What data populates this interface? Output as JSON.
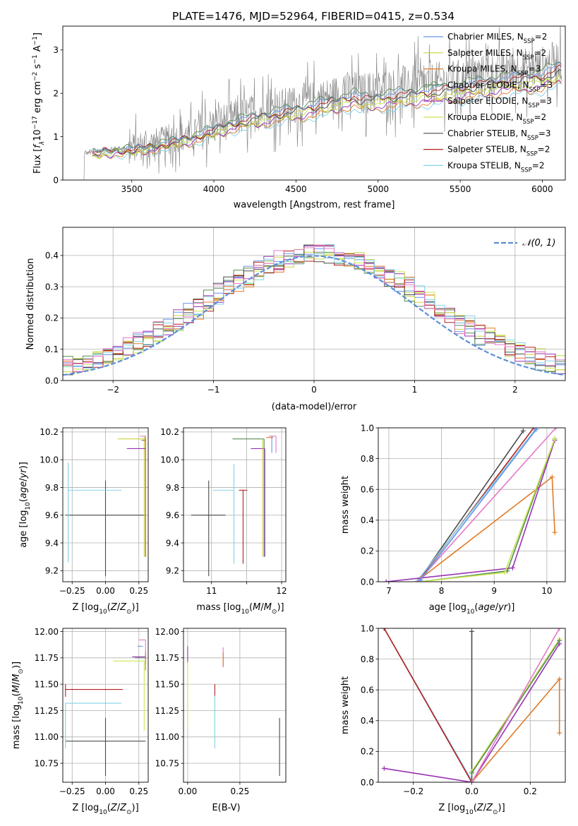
{
  "figure_title": "PLATE=1476, MJD=52964, FIBERID=0415, z=0.534",
  "colors": {
    "Chabrier MILES": "#6495ed",
    "Salpeter MILES": "#cad53c",
    "Kroupa MILES": "#e07b28",
    "Chabrier ELODIE": "#5a8a5a",
    "Salpeter ELODIE": "#9932b4",
    "Kroupa ELODIE": "#c8e650",
    "Chabrier STELIB": "#4a4a4a",
    "Salpeter STELIB": "#b41e1e",
    "Kroupa STELIB": "#82d2e6",
    "magenta": "#e678c8",
    "data": "#808080",
    "normal": "#5b8fd6"
  },
  "chart_data": [
    {
      "id": "spectrum",
      "type": "line",
      "title": "PLATE=1476, MJD=52964, FIBERID=0415, z=0.534",
      "xlabel": "wavelength [Angstrom, rest frame]",
      "ylabel": "Flux [f_λ 10^-17 erg cm^-2 s^-1 A^-1]",
      "xlim": [
        3080,
        6140
      ],
      "ylim": [
        0,
        3.55
      ],
      "xticks": [
        3500,
        4000,
        4500,
        5000,
        5500,
        6000
      ],
      "yticks": [
        0,
        1,
        2,
        3
      ],
      "grid": false,
      "legend": "upper right",
      "legend_entries": [
        {
          "label": "Chabrier MILES, N_SSP=2",
          "base": "Chabrier MILES, N",
          "sub": "SSP",
          "tail": "=2",
          "color": "#6495ed"
        },
        {
          "label": "Salpeter MILES, N_SSP=2",
          "base": "Salpeter MILES, N",
          "sub": "SSP",
          "tail": "=2",
          "color": "#cad53c"
        },
        {
          "label": "Kroupa MILES, N_SSP=3",
          "base": "Kroupa MILES, N",
          "sub": "SSP",
          "tail": "=3",
          "color": "#e07b28"
        },
        {
          "label": "Chabrier ELODIE, N_SSP=3",
          "base": "Chabrier ELODIE, N",
          "sub": "SSP",
          "tail": "=3",
          "color": "#5a8a5a"
        },
        {
          "label": "Salpeter ELODIE, N_SSP=3",
          "base": "Salpeter ELODIE, N",
          "sub": "SSP",
          "tail": "=3",
          "color": "#9932b4"
        },
        {
          "label": "Kroupa ELODIE, N_SSP=2",
          "base": "Kroupa ELODIE, N",
          "sub": "SSP",
          "tail": "=2",
          "color": "#c8e650"
        },
        {
          "label": "Chabrier STELIB, N_SSP=3",
          "base": "Chabrier STELIB, N",
          "sub": "SSP",
          "tail": "=3",
          "color": "#4a4a4a"
        },
        {
          "label": "Salpeter STELIB, N_SSP=2",
          "base": "Salpeter STELIB, N",
          "sub": "SSP",
          "tail": "=2",
          "color": "#b41e1e"
        },
        {
          "label": "Kroupa STELIB, N_SSP=2",
          "base": "Kroupa STELIB, N",
          "sub": "SSP",
          "tail": "=2",
          "color": "#82d2e6"
        }
      ],
      "data_envelope": {
        "x": [
          3200,
          3350,
          3500,
          3700,
          3900,
          4000,
          4100,
          4300,
          4500,
          4700,
          4850,
          4900,
          5100,
          5300,
          5500,
          5700,
          5900,
          6000,
          6100
        ],
        "y": [
          0.6,
          0.72,
          0.75,
          0.9,
          1.1,
          1.25,
          1.4,
          1.6,
          1.75,
          1.92,
          2.1,
          2.0,
          2.1,
          2.2,
          2.3,
          2.45,
          2.55,
          2.6,
          2.75
        ]
      }
    },
    {
      "id": "residuals",
      "type": "step",
      "xlabel": "(data-model)/error",
      "ylabel": "Normed distribution",
      "xlim": [
        -2.5,
        2.5
      ],
      "ylim": [
        0,
        0.49
      ],
      "xticks": [
        -2,
        -1,
        0,
        1,
        2
      ],
      "yticks": [
        0.0,
        0.1,
        0.2,
        0.3,
        0.4
      ],
      "grid": true,
      "legend": "upper right",
      "legend_label": "𝒩(0, 1)",
      "normal_curve": {
        "mu": 0,
        "sigma": 1
      }
    },
    {
      "id": "age-vs-Z",
      "type": "errorbar",
      "xlabel": "Z [log10(Z/Z☉)]",
      "ylabel": "age [log10(age/yr)]",
      "xlim": [
        -0.32,
        0.32
      ],
      "ylim": [
        9.12,
        10.23
      ],
      "xticks": [
        -0.25,
        0.0,
        0.25
      ],
      "yticks": [
        9.2,
        9.4,
        9.6,
        9.8,
        10.0,
        10.2
      ],
      "points": [
        {
          "series": "Chabrier STELIB",
          "x": 0.0,
          "y": 9.6,
          "xerr": [
            0.3,
            0.3
          ],
          "yerr": [
            0.44,
            0.25
          ],
          "color": "#4a4a4a"
        },
        {
          "series": "Kroupa STELIB",
          "x": -0.28,
          "y": 9.78,
          "xerr": [
            0.0,
            0.4
          ],
          "yerr": [
            0.52,
            0.2
          ],
          "color": "#82d2e6"
        },
        {
          "series": "Salpeter MILES",
          "x": 0.29,
          "y": 10.15,
          "xerr": [
            0.2,
            0.01
          ],
          "yerr": [
            0.85,
            0.02
          ],
          "color": "#cad53c"
        },
        {
          "series": "Salpeter ELODIE",
          "x": 0.3,
          "y": 10.08,
          "xerr": [
            0.14,
            0.0
          ],
          "yerr": [
            0.78,
            0.09
          ],
          "color": "#9932b4"
        },
        {
          "series": "magenta",
          "x": 0.3,
          "y": 10.17,
          "xerr": [
            0.04,
            0.0
          ],
          "yerr": [
            0.87,
            0.0
          ],
          "color": "#e678c8"
        },
        {
          "series": "Chabrier ELODIE",
          "x": 0.3,
          "y": 10.14,
          "xerr": [
            0.03,
            0.0
          ],
          "yerr": [
            0.84,
            0.01
          ],
          "color": "#5a8a5a"
        },
        {
          "series": "Kroupa MILES",
          "x": 0.3,
          "y": 10.14,
          "xerr": [
            0.02,
            0.0
          ],
          "yerr": [
            0.84,
            0.0
          ],
          "color": "#e07b28"
        }
      ]
    },
    {
      "id": "age-vs-mass",
      "type": "errorbar",
      "xlabel": "mass [log10(M/M☉)]",
      "ylabel": "",
      "xlim": [
        10.6,
        12.06
      ],
      "ylim": [
        9.12,
        10.23
      ],
      "xticks": [
        11,
        11.5,
        12
      ],
      "xtick_labels": [
        "11",
        "",
        "12"
      ],
      "yticks": [
        9.2,
        9.4,
        9.6,
        9.8,
        10.0,
        10.2
      ],
      "points": [
        {
          "series": "Chabrier STELIB",
          "x": 10.96,
          "y": 9.6,
          "xerr": [
            0.25,
            0.24
          ],
          "yerr": [
            0.44,
            0.25
          ],
          "color": "#4a4a4a"
        },
        {
          "series": "Kroupa STELIB",
          "x": 11.32,
          "y": 9.78,
          "xerr": [
            0.3,
            0.0
          ],
          "yerr": [
            0.53,
            0.19
          ],
          "color": "#82d2e6"
        },
        {
          "series": "Salpeter STELIB",
          "x": 11.45,
          "y": 9.78,
          "xerr": [
            0.06,
            0.06
          ],
          "yerr": [
            0.53,
            0.0
          ],
          "color": "#b41e1e"
        },
        {
          "series": "Chabrier ELODIE",
          "x": 11.75,
          "y": 10.15,
          "xerr": [
            0.45,
            0.0
          ],
          "yerr": [
            0.85,
            0.0
          ],
          "color": "#5a8a5a"
        },
        {
          "series": "Salpeter ELODIE",
          "x": 11.76,
          "y": 10.08,
          "xerr": [
            0.2,
            0.0
          ],
          "yerr": [
            0.78,
            0.0
          ],
          "color": "#9932b4"
        },
        {
          "series": "Salpeter MILES",
          "x": 11.73,
          "y": 10.15,
          "xerr": [
            0.0,
            0.0
          ],
          "yerr": [
            0.85,
            0.0
          ],
          "color": "#cad53c"
        },
        {
          "series": "Kroupa MILES",
          "x": 11.78,
          "y": 10.16,
          "xerr": [
            0.0,
            0.1
          ],
          "yerr": [
            0.0,
            0.0
          ],
          "color": "#e07b28"
        },
        {
          "series": "magenta",
          "x": 11.92,
          "y": 10.17,
          "xerr": [
            0.1,
            0.0
          ],
          "yerr": [
            0.12,
            0.0
          ],
          "color": "#e678c8"
        },
        {
          "series": "Chabrier MILES",
          "x": 11.86,
          "y": 10.17,
          "xerr": [
            0.0,
            0.0
          ],
          "yerr": [
            0.12,
            0.0
          ],
          "color": "#6495ed"
        }
      ]
    },
    {
      "id": "weight-vs-age",
      "type": "line",
      "xlabel": "age [log10(age/yr)]",
      "ylabel": "mass weight",
      "xlim": [
        6.8,
        10.35
      ],
      "ylim": [
        0,
        1.0
      ],
      "xticks": [
        7,
        8,
        9,
        10
      ],
      "yticks": [
        0.0,
        0.2,
        0.4,
        0.6,
        0.8,
        1.0
      ],
      "series": [
        {
          "name": "Chabrier STELIB",
          "x": [
            7.55,
            9.55
          ],
          "y": [
            0.0,
            0.98
          ],
          "color": "#4a4a4a"
        },
        {
          "name": "Salpeter STELIB",
          "x": [
            7.55,
            9.75
          ],
          "y": [
            0.0,
            1.0
          ],
          "color": "#b41e1e"
        },
        {
          "name": "Kroupa STELIB",
          "x": [
            7.55,
            9.78
          ],
          "y": [
            0.01,
            0.99
          ],
          "color": "#82d2e6"
        },
        {
          "name": "Kroupa MILES",
          "x": [
            7.6,
            10.1,
            10.15
          ],
          "y": [
            0.02,
            0.68,
            0.32
          ],
          "color": "#e07b28"
        },
        {
          "name": "Salpeter ELODIE",
          "x": [
            6.95,
            9.35,
            10.15
          ],
          "y": [
            0.0,
            0.09,
            0.92
          ],
          "color": "#9932b4"
        },
        {
          "name": "Chabrier ELODIE",
          "x": [
            7.6,
            9.25,
            10.15
          ],
          "y": [
            0.0,
            0.07,
            0.93
          ],
          "color": "#5a8a5a"
        },
        {
          "name": "Kroupa ELODIE",
          "x": [
            7.6,
            9.2,
            10.15
          ],
          "y": [
            0.0,
            0.06,
            0.93
          ],
          "color": "#c8e650"
        },
        {
          "name": "magenta",
          "x": [
            7.55,
            10.17
          ],
          "y": [
            0.0,
            1.0
          ],
          "color": "#e678c8"
        },
        {
          "name": "Chabrier MILES",
          "x": [
            7.6,
            9.8
          ],
          "y": [
            0.01,
            0.99
          ],
          "color": "#6495ed"
        }
      ]
    },
    {
      "id": "mass-vs-Z",
      "type": "errorbar",
      "xlabel": "Z [log10(Z/Z☉)]",
      "ylabel": "mass [log10(M/M☉)]",
      "xlim": [
        -0.32,
        0.32
      ],
      "ylim": [
        10.57,
        12.03
      ],
      "xticks": [
        -0.25,
        0.0,
        0.25
      ],
      "yticks": [
        10.75,
        11.0,
        11.25,
        11.5,
        11.75,
        12.0
      ],
      "points": [
        {
          "series": "Chabrier STELIB",
          "x": 0.0,
          "y": 10.96,
          "xerr": [
            0.3,
            0.3
          ],
          "yerr": [
            0.33,
            0.22
          ],
          "color": "#4a4a4a"
        },
        {
          "series": "Kroupa STELIB",
          "x": -0.3,
          "y": 11.32,
          "xerr": [
            0.0,
            0.42
          ],
          "yerr": [
            0.43,
            0.0
          ],
          "color": "#82d2e6"
        },
        {
          "series": "Salpeter STELIB",
          "x": -0.3,
          "y": 11.45,
          "xerr": [
            0.0,
            0.43
          ],
          "yerr": [
            0.07,
            0.05
          ],
          "color": "#b41e1e"
        },
        {
          "series": "Kroupa ELODIE",
          "x": 0.29,
          "y": 11.72,
          "xerr": [
            0.23,
            0.0
          ],
          "yerr": [
            0.66,
            0.0
          ],
          "color": "#c8e650"
        },
        {
          "series": "Salpeter ELODIE",
          "x": 0.3,
          "y": 11.76,
          "xerr": [
            0.1,
            0.0
          ],
          "yerr": [
            0.03,
            0.05
          ],
          "color": "#9932b4"
        },
        {
          "series": "Chabrier ELODIE",
          "x": 0.3,
          "y": 11.75,
          "xerr": [
            0.08,
            0.0
          ],
          "yerr": [
            0.02,
            0.03
          ],
          "color": "#5a8a5a"
        },
        {
          "series": "Chabrier MILES",
          "x": 0.28,
          "y": 11.86,
          "xerr": [
            0.04,
            0.0
          ],
          "yerr": [
            0.0,
            0.0
          ],
          "color": "#6495ed"
        },
        {
          "series": "magenta",
          "x": 0.3,
          "y": 11.92,
          "xerr": [
            0.05,
            0.0
          ],
          "yerr": [
            0.23,
            0.0
          ],
          "color": "#e678c8"
        },
        {
          "series": "Kroupa MILES",
          "x": 0.3,
          "y": 11.78,
          "xerr": [
            0.0,
            0.0
          ],
          "yerr": [
            0.15,
            0.0
          ],
          "color": "#e07b28"
        }
      ]
    },
    {
      "id": "mass-vs-EBV",
      "type": "errorbar",
      "xlabel": "E(B-V)",
      "ylabel": "",
      "xlim": [
        -0.02,
        0.47
      ],
      "ylim": [
        10.57,
        12.03
      ],
      "xticks": [
        0.0,
        0.25
      ],
      "yticks": [
        10.75,
        11.0,
        11.25,
        11.5,
        11.75,
        12.0
      ],
      "points": [
        {
          "series": "Chabrier STELIB",
          "x": 0.44,
          "y": 10.96,
          "xerr": [
            0.0,
            0.0
          ],
          "yerr": [
            0.33,
            0.22
          ],
          "color": "#4a4a4a"
        },
        {
          "series": "Kroupa STELIB",
          "x": 0.13,
          "y": 11.32,
          "xerr": [
            0.0,
            0.0
          ],
          "yerr": [
            0.43,
            0.07
          ],
          "color": "#82d2e6"
        },
        {
          "series": "Salpeter STELIB",
          "x": 0.13,
          "y": 11.45,
          "xerr": [
            0.0,
            0.0
          ],
          "yerr": [
            0.06,
            0.05
          ],
          "color": "#b41e1e"
        },
        {
          "series": "Kroupa ELODIE",
          "x": 0.0,
          "y": 11.5,
          "xerr": [
            0.0,
            0.0
          ],
          "yerr": [
            0.4,
            0.3
          ],
          "color": "#c8e650"
        },
        {
          "series": "Salpeter ELODIE",
          "x": 0.0,
          "y": 11.76,
          "xerr": [
            0.0,
            0.0
          ],
          "yerr": [
            0.05,
            0.1
          ],
          "color": "#9932b4"
        },
        {
          "series": "magenta",
          "x": 0.17,
          "y": 11.75,
          "xerr": [
            0.0,
            0.0
          ],
          "yerr": [
            0.09,
            0.1
          ],
          "color": "#e678c8"
        },
        {
          "series": "Kroupa MILES",
          "x": 0.17,
          "y": 11.75,
          "xerr": [
            0.0,
            0.0
          ],
          "yerr": [
            0.08,
            0.05
          ],
          "color": "#e07b28"
        }
      ]
    },
    {
      "id": "weight-vs-Z",
      "type": "line",
      "xlabel": "Z [log10(Z/Z☉)]",
      "ylabel": "mass weight",
      "xlim": [
        -0.32,
        0.32
      ],
      "ylim": [
        0,
        1.0
      ],
      "xticks": [
        -0.2,
        0.0,
        0.2
      ],
      "yticks": [
        0.0,
        0.2,
        0.4,
        0.6,
        0.8,
        1.0
      ],
      "series": [
        {
          "name": "Kroupa STELIB",
          "x": [
            -0.3,
            0.0
          ],
          "y": [
            1.0,
            0.01
          ],
          "color": "#82d2e6"
        },
        {
          "name": "Salpeter STELIB",
          "x": [
            -0.3,
            0.0
          ],
          "y": [
            1.0,
            0.0
          ],
          "color": "#b41e1e"
        },
        {
          "name": "Chabrier STELIB",
          "x": [
            0.0,
            0.0
          ],
          "y": [
            0.0,
            0.98
          ],
          "color": "#4a4a4a"
        },
        {
          "name": "Salpeter ELODIE",
          "x": [
            -0.3,
            0.0,
            0.3
          ],
          "y": [
            0.09,
            0.0,
            0.9
          ],
          "color": "#9932b4"
        },
        {
          "name": "Kroupa MILES",
          "x": [
            0.0,
            0.3,
            0.3
          ],
          "y": [
            0.0,
            0.67,
            0.32
          ],
          "color": "#e07b28"
        },
        {
          "name": "Kroupa ELODIE",
          "x": [
            0.0,
            0.3
          ],
          "y": [
            0.07,
            0.93
          ],
          "color": "#c8e650"
        },
        {
          "name": "Chabrier ELODIE",
          "x": [
            0.0,
            0.3
          ],
          "y": [
            0.06,
            0.92
          ],
          "color": "#5a8a5a"
        },
        {
          "name": "magenta",
          "x": [
            0.0,
            0.3
          ],
          "y": [
            0.0,
            1.0
          ],
          "color": "#e678c8"
        }
      ]
    }
  ]
}
